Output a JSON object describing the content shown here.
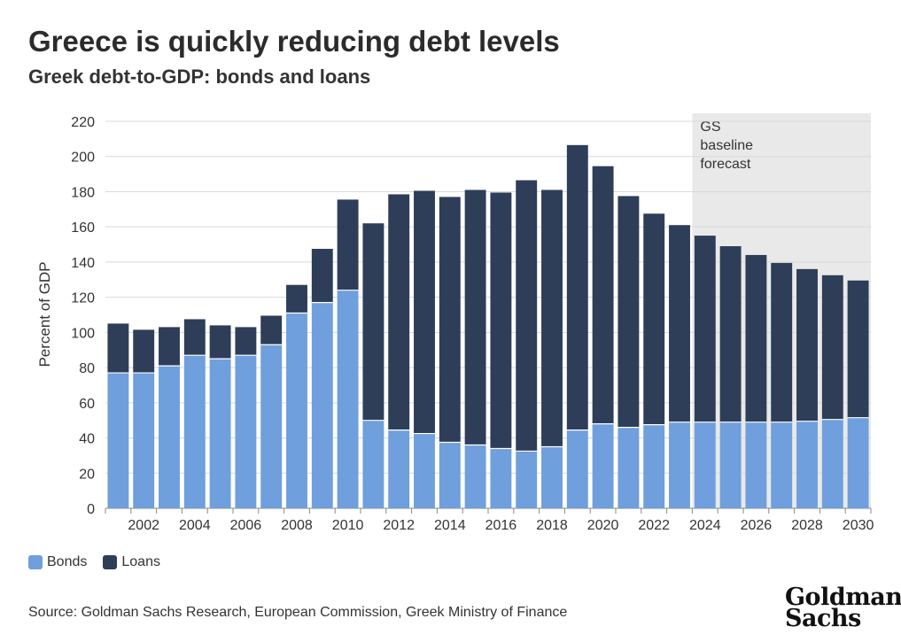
{
  "header": {
    "title": "Greece is quickly reducing debt levels",
    "subtitle": "Greek debt-to-GDP: bonds and loans"
  },
  "chart_data": {
    "type": "bar",
    "stacked": true,
    "title": "Greece is quickly reducing debt levels",
    "subtitle": "Greek debt-to-GDP: bonds and loans",
    "xlabel": "",
    "ylabel": "Percent of GDP",
    "ylim": [
      0,
      220
    ],
    "yticks": [
      0,
      20,
      40,
      60,
      80,
      100,
      120,
      140,
      160,
      180,
      200,
      220
    ],
    "grid": true,
    "categories": [
      2001,
      2002,
      2003,
      2004,
      2005,
      2006,
      2007,
      2008,
      2009,
      2010,
      2011,
      2012,
      2013,
      2014,
      2015,
      2016,
      2017,
      2018,
      2019,
      2020,
      2021,
      2022,
      2023,
      2024,
      2025,
      2026,
      2027,
      2028,
      2029,
      2030
    ],
    "xtick_labels": [
      "2002",
      "2004",
      "2006",
      "2008",
      "2010",
      "2012",
      "2014",
      "2016",
      "2018",
      "2020",
      "2022",
      "2024",
      "2026",
      "2028",
      "2030"
    ],
    "series": [
      {
        "name": "Bonds",
        "color": "#6f9fdc",
        "values": [
          77,
          77,
          81,
          87,
          85,
          87,
          93,
          111,
          117,
          124,
          50,
          44.5,
          42.5,
          37.5,
          36,
          34,
          32.5,
          35,
          44.5,
          48,
          46,
          47.5,
          49,
          49,
          49,
          49,
          49,
          49.5,
          50.5,
          51.5
        ]
      },
      {
        "name": "Loans",
        "color": "#2e3e58",
        "values": [
          28,
          24.5,
          22,
          20.5,
          19,
          16,
          16.5,
          16,
          30.5,
          51.5,
          112,
          134,
          138,
          139.5,
          145,
          145.5,
          154,
          146,
          162,
          146.5,
          131.5,
          120,
          112,
          106,
          100,
          95,
          90.5,
          86.5,
          82,
          78
        ]
      }
    ],
    "forecast": {
      "label_lines": [
        "GS",
        "baseline",
        "forecast"
      ],
      "start": 2024,
      "end": 2030
    },
    "legend": {
      "position": "bottom-left",
      "entries": [
        "Bonds",
        "Loans"
      ]
    }
  },
  "footer": {
    "source": "Source: Goldman Sachs Research, European Commission, Greek Ministry of Finance",
    "logo_lines": [
      "Goldman",
      "Sachs"
    ]
  }
}
